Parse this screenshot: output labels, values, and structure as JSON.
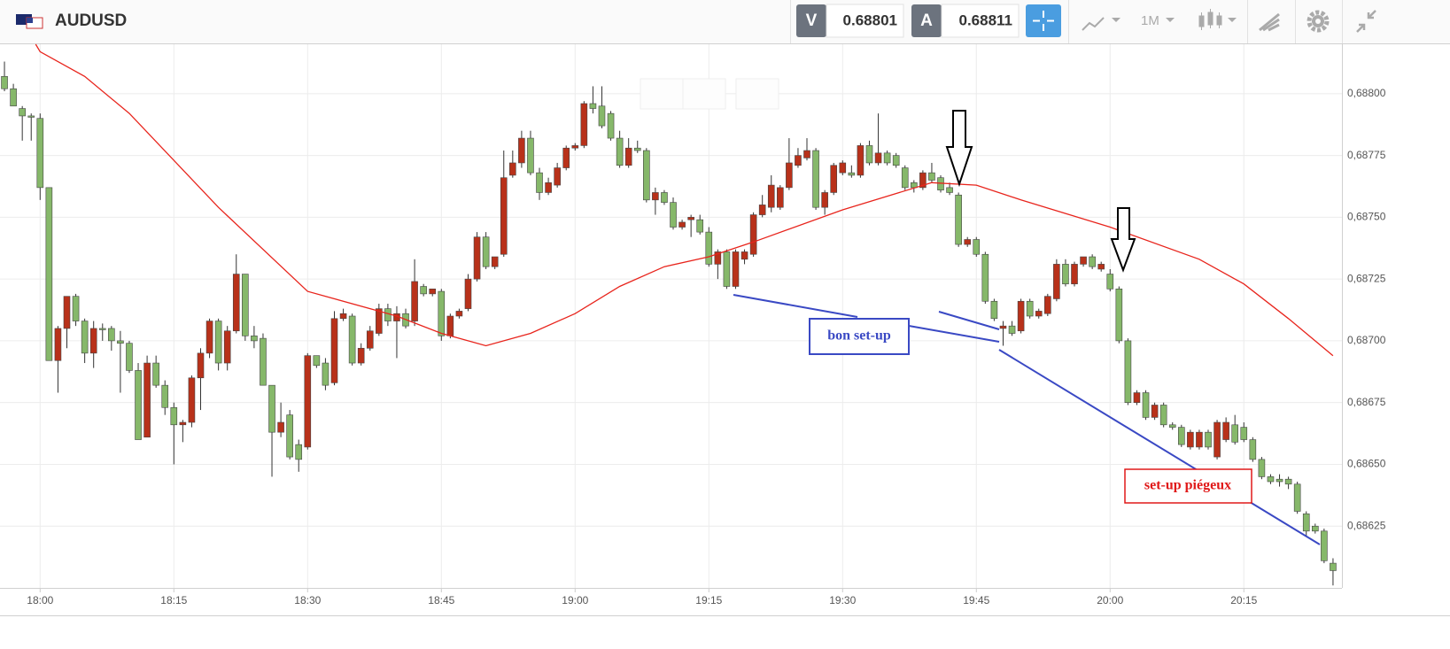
{
  "header": {
    "symbol": "AUDUSD",
    "sell_label": "V",
    "sell_price": "0.68801",
    "buy_label": "A",
    "buy_price": "0.68811",
    "timeframe": "1M"
  },
  "chart_data": {
    "type": "candlestick",
    "up_color": "#b8311a",
    "down_color": "#86b86a",
    "x": [
      1076,
      1077,
      1078,
      1079,
      1080,
      1081,
      1082,
      1083,
      1084,
      1085,
      1086,
      1087,
      1088,
      1089,
      1090,
      1091,
      1092,
      1093,
      1094,
      1095,
      1096,
      1097,
      1098,
      1099,
      1100,
      1101,
      1102,
      1103,
      1104,
      1105,
      1106,
      1107,
      1108,
      1109,
      1110,
      1111,
      1112,
      1113,
      1114,
      1115,
      1116,
      1117,
      1118,
      1119,
      1120,
      1121,
      1122,
      1123,
      1124,
      1125,
      1126,
      1127,
      1128,
      1129,
      1130,
      1131,
      1132,
      1133,
      1134,
      1135,
      1136,
      1137,
      1138,
      1139,
      1140,
      1141,
      1142,
      1143,
      1144,
      1145,
      1146,
      1147,
      1148,
      1149,
      1150,
      1151,
      1152,
      1153,
      1154,
      1155,
      1156,
      1157,
      1158,
      1159,
      1160,
      1161,
      1162,
      1163,
      1164,
      1165,
      1166,
      1167,
      1168,
      1169,
      1170,
      1171,
      1172,
      1173,
      1174,
      1175,
      1176,
      1177,
      1178,
      1179,
      1180,
      1181,
      1182,
      1183,
      1184,
      1185,
      1186,
      1187,
      1188,
      1189,
      1190,
      1191,
      1192,
      1193,
      1194,
      1195,
      1196,
      1197,
      1198,
      1199,
      1200,
      1201,
      1202,
      1203,
      1204,
      1205,
      1206,
      1207,
      1208,
      1209,
      1210,
      1211,
      1212,
      1213,
      1214,
      1215,
      1216,
      1217,
      1218,
      1219,
      1220,
      1221,
      1222,
      1223,
      1224,
      1225
    ],
    "open": [
      0.68807,
      0.68802,
      0.68794,
      0.68791,
      0.6879,
      0.68762,
      0.68692,
      0.68705,
      0.68718,
      0.68708,
      0.68695,
      0.68705,
      0.68705,
      0.687,
      0.68699,
      0.68688,
      0.68661,
      0.68691,
      0.68682,
      0.68673,
      0.68666,
      0.68667,
      0.68685,
      0.68695,
      0.68708,
      0.68691,
      0.68704,
      0.68727,
      0.68702,
      0.68701,
      0.68682,
      0.68663,
      0.6867,
      0.68658,
      0.68657,
      0.68694,
      0.68691,
      0.68683,
      0.68709,
      0.6871,
      0.68691,
      0.68697,
      0.68703,
      0.68713,
      0.68708,
      0.68711,
      0.68708,
      0.68722,
      0.68719,
      0.6872,
      0.68702,
      0.6871,
      0.68713,
      0.68725,
      0.68742,
      0.6873,
      0.68735,
      0.68767,
      0.68772,
      0.68782,
      0.68768,
      0.6876,
      0.68763,
      0.6877,
      0.68778,
      0.68779,
      0.68796,
      0.68795,
      0.68792,
      0.68782,
      0.68771,
      0.68778,
      0.68777,
      0.68757,
      0.6876,
      0.68756,
      0.68746,
      0.68749,
      0.68749,
      0.68744,
      0.68731,
      0.68736,
      0.68722,
      0.68733,
      0.68735,
      0.68751,
      0.68754,
      0.68754,
      0.68762,
      0.68771,
      0.68774,
      0.68777,
      0.68754,
      0.6876,
      0.68768,
      0.68768,
      0.68767,
      0.68779,
      0.68772,
      0.68776,
      0.68775,
      0.6877,
      0.68764,
      0.68762,
      0.68768,
      0.68766,
      0.68762,
      0.68759,
      0.68739,
      0.68741,
      0.68735,
      0.68716,
      0.68705,
      0.68706,
      0.68704,
      0.68716,
      0.6871,
      0.68711,
      0.68717,
      0.68731,
      0.68723,
      0.68731,
      0.68734,
      0.68729,
      0.68727,
      0.68721,
      0.687,
      0.68675,
      0.68679,
      0.68669,
      0.68674,
      0.68666,
      0.68665,
      0.68657,
      0.68657,
      0.68663,
      0.68653,
      0.6866,
      0.68666,
      0.68665,
      0.6866,
      0.68652,
      0.68645,
      0.68644,
      0.68644,
      0.68642,
      0.6863,
      0.68625,
      0.68623,
      0.6861
    ],
    "high": [
      0.68813,
      0.68804,
      0.68795,
      0.68792,
      0.68792,
      0.68762,
      0.68706,
      0.68718,
      0.68719,
      0.68709,
      0.68708,
      0.68707,
      0.68706,
      0.68704,
      0.687,
      0.68691,
      0.68694,
      0.68694,
      0.68684,
      0.68675,
      0.68668,
      0.68686,
      0.68697,
      0.68709,
      0.68709,
      0.68706,
      0.68735,
      0.68727,
      0.68706,
      0.68703,
      0.68682,
      0.68675,
      0.68672,
      0.6866,
      0.68695,
      0.68694,
      0.68693,
      0.68712,
      0.68713,
      0.68711,
      0.68699,
      0.68706,
      0.68715,
      0.68715,
      0.68714,
      0.68713,
      0.68733,
      0.68723,
      0.68721,
      0.68721,
      0.68711,
      0.68713,
      0.68727,
      0.68744,
      0.68744,
      0.68734,
      0.68777,
      0.68777,
      0.68785,
      0.68785,
      0.6877,
      0.68766,
      0.68772,
      0.68779,
      0.6878,
      0.68797,
      0.68803,
      0.68803,
      0.68793,
      0.68785,
      0.68782,
      0.68781,
      0.68778,
      0.68762,
      0.68761,
      0.68758,
      0.68749,
      0.68751,
      0.68751,
      0.68746,
      0.68737,
      0.68737,
      0.68737,
      0.68737,
      0.68752,
      0.68759,
      0.68767,
      0.68763,
      0.68782,
      0.68778,
      0.68782,
      0.68778,
      0.68761,
      0.68772,
      0.68773,
      0.68771,
      0.6878,
      0.68781,
      0.68792,
      0.68777,
      0.68776,
      0.68771,
      0.68765,
      0.68769,
      0.68772,
      0.68767,
      0.68764,
      0.6876,
      0.68742,
      0.68742,
      0.68736,
      0.68717,
      0.68708,
      0.68708,
      0.68717,
      0.68717,
      0.68713,
      0.68719,
      0.68733,
      0.68733,
      0.68732,
      0.68734,
      0.68735,
      0.68732,
      0.68729,
      0.68722,
      0.68701,
      0.6868,
      0.6868,
      0.68675,
      0.68675,
      0.68667,
      0.68666,
      0.68664,
      0.68664,
      0.68664,
      0.68668,
      0.68669,
      0.6867,
      0.68667,
      0.68661,
      0.68653,
      0.68646,
      0.68646,
      0.68645,
      0.68643,
      0.68631,
      0.68626,
      0.68624,
      0.68612
    ],
    "low": [
      0.68801,
      0.68795,
      0.68781,
      0.68781,
      0.68757,
      0.68692,
      0.68679,
      0.68697,
      0.68706,
      0.68691,
      0.68689,
      0.687,
      0.68696,
      0.68679,
      0.68687,
      0.6866,
      0.68661,
      0.68681,
      0.6867,
      0.6865,
      0.68659,
      0.68665,
      0.68672,
      0.68693,
      0.68688,
      0.68688,
      0.68703,
      0.687,
      0.68697,
      0.68682,
      0.68645,
      0.68661,
      0.68652,
      0.68647,
      0.68656,
      0.68689,
      0.6868,
      0.68682,
      0.68708,
      0.6869,
      0.6869,
      0.68696,
      0.68702,
      0.68706,
      0.68693,
      0.68705,
      0.68706,
      0.68718,
      0.68718,
      0.687,
      0.68701,
      0.68709,
      0.68712,
      0.68724,
      0.68729,
      0.68729,
      0.68734,
      0.68766,
      0.6877,
      0.68767,
      0.68757,
      0.68759,
      0.68762,
      0.68769,
      0.68777,
      0.68778,
      0.68792,
      0.68786,
      0.68781,
      0.6877,
      0.6877,
      0.68776,
      0.68756,
      0.68751,
      0.68755,
      0.68745,
      0.68745,
      0.68742,
      0.68743,
      0.6873,
      0.68725,
      0.68721,
      0.68721,
      0.68731,
      0.68734,
      0.6875,
      0.68752,
      0.68753,
      0.68761,
      0.6877,
      0.68773,
      0.68753,
      0.68751,
      0.68759,
      0.68767,
      0.68766,
      0.68766,
      0.68771,
      0.68771,
      0.68771,
      0.6877,
      0.68761,
      0.6876,
      0.68761,
      0.68764,
      0.6876,
      0.68759,
      0.68738,
      0.68738,
      0.68734,
      0.68715,
      0.68708,
      0.68698,
      0.68702,
      0.68703,
      0.68709,
      0.68709,
      0.6871,
      0.68716,
      0.68722,
      0.68722,
      0.6873,
      0.68729,
      0.68728,
      0.6872,
      0.68699,
      0.68674,
      0.68674,
      0.68668,
      0.68668,
      0.68665,
      0.68664,
      0.68657,
      0.68656,
      0.68656,
      0.68656,
      0.68652,
      0.68659,
      0.68658,
      0.68659,
      0.68651,
      0.68644,
      0.68642,
      0.68641,
      0.6864,
      0.6863,
      0.68621,
      0.68622,
      0.6861,
      0.68601
    ],
    "close": [
      0.68802,
      0.68795,
      0.68791,
      0.68791,
      0.68762,
      0.68692,
      0.68705,
      0.68718,
      0.68708,
      0.68695,
      0.68705,
      0.68705,
      0.687,
      0.68699,
      0.68688,
      0.6866,
      0.68691,
      0.68682,
      0.68673,
      0.68666,
      0.68667,
      0.68685,
      0.68695,
      0.68708,
      0.68691,
      0.68704,
      0.68727,
      0.68702,
      0.687,
      0.68682,
      0.68663,
      0.68667,
      0.68653,
      0.68652,
      0.68694,
      0.6869,
      0.68682,
      0.68709,
      0.68711,
      0.68691,
      0.68697,
      0.68704,
      0.68713,
      0.68708,
      0.68711,
      0.68706,
      0.68724,
      0.68719,
      0.68721,
      0.68702,
      0.6871,
      0.68712,
      0.68725,
      0.68742,
      0.6873,
      0.68734,
      0.68766,
      0.68772,
      0.68782,
      0.68768,
      0.6876,
      0.68764,
      0.6877,
      0.68778,
      0.68779,
      0.68796,
      0.68794,
      0.68787,
      0.68782,
      0.68771,
      0.68778,
      0.68777,
      0.68757,
      0.6876,
      0.68756,
      0.68746,
      0.68748,
      0.6875,
      0.68744,
      0.68731,
      0.68736,
      0.68722,
      0.68736,
      0.68736,
      0.68751,
      0.68755,
      0.68763,
      0.68762,
      0.68772,
      0.68775,
      0.68777,
      0.68754,
      0.6876,
      0.68771,
      0.68772,
      0.68767,
      0.68779,
      0.68772,
      0.68776,
      0.68772,
      0.68771,
      0.68762,
      0.68762,
      0.68768,
      0.68765,
      0.68761,
      0.6876,
      0.68739,
      0.68741,
      0.68735,
      0.68716,
      0.68709,
      0.68706,
      0.68703,
      0.68716,
      0.6871,
      0.68712,
      0.68718,
      0.68731,
      0.68723,
      0.68731,
      0.68734,
      0.6873,
      0.68731,
      0.68721,
      0.687,
      0.68675,
      0.68679,
      0.68669,
      0.68674,
      0.68666,
      0.68665,
      0.68658,
      0.68663,
      0.68663,
      0.68657,
      0.68667,
      0.68667,
      0.68659,
      0.6866,
      0.68652,
      0.68645,
      0.68643,
      0.68643,
      0.68642,
      0.68631,
      0.68623,
      0.68623,
      0.68611,
      0.68607
    ],
    "overlays": [
      {
        "type": "line",
        "color": "#e8241c",
        "x": [
          1079.5,
          1080,
          1085,
          1090,
          1100,
          1110,
          1120,
          1125,
          1130,
          1135,
          1140,
          1145,
          1150,
          1155,
          1160,
          1170,
          1180,
          1185,
          1190,
          1200,
          1210,
          1215,
          1220,
          1225
        ],
        "values": [
          0.6882,
          0.68817,
          0.68807,
          0.68792,
          0.68754,
          0.6872,
          0.6871,
          0.68703,
          0.68698,
          0.68703,
          0.68711,
          0.68722,
          0.6873,
          0.68734,
          0.6874,
          0.68753,
          0.68764,
          0.68763,
          0.68757,
          0.68746,
          0.68733,
          0.68723,
          0.68709,
          0.68694
        ]
      }
    ],
    "annotations": [
      "bon set-up",
      "set-up piégeux"
    ],
    "xlim": [
      1075.5,
      1226
    ],
    "ylim": [
      0.686,
      0.6882
    ],
    "xticks": [
      {
        "value": 1080,
        "label": "18:00"
      },
      {
        "value": 1095,
        "label": "18:15"
      },
      {
        "value": 1110,
        "label": "18:30"
      },
      {
        "value": 1125,
        "label": "18:45"
      },
      {
        "value": 1140,
        "label": "19:00"
      },
      {
        "value": 1155,
        "label": "19:15"
      },
      {
        "value": 1170,
        "label": "19:30"
      },
      {
        "value": 1185,
        "label": "19:45"
      },
      {
        "value": 1200,
        "label": "20:00"
      },
      {
        "value": 1215,
        "label": "20:15"
      }
    ],
    "yticks": [
      {
        "value": 0.68625,
        "label": "0,68625"
      },
      {
        "value": 0.6865,
        "label": "0,68650"
      },
      {
        "value": 0.68675,
        "label": "0,68675"
      },
      {
        "value": 0.687,
        "label": "0,68700"
      },
      {
        "value": 0.68725,
        "label": "0,68725"
      },
      {
        "value": 0.6875,
        "label": "0,68750"
      },
      {
        "value": 0.68775,
        "label": "0,68775"
      },
      {
        "value": 0.688,
        "label": "0,68800"
      }
    ],
    "grid": true
  }
}
